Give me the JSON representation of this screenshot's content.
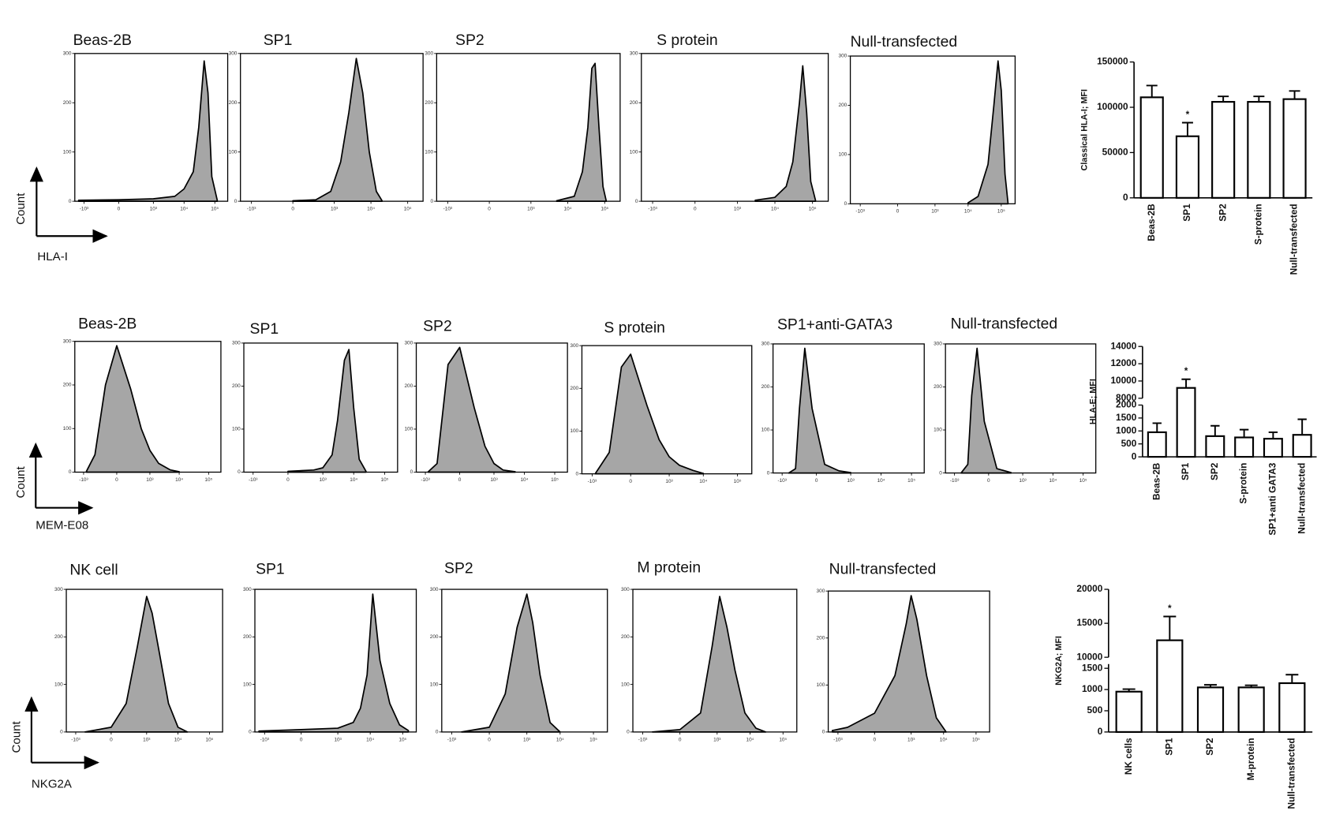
{
  "rows": [
    {
      "y_label": "Count",
      "x_label": "HLA-I"
    },
    {
      "y_label": "Count",
      "x_label": "MEM-E08"
    },
    {
      "y_label": "Count",
      "x_label": "NKG2A"
    }
  ],
  "chart_data": [
    {
      "type": "area",
      "title": "Beas-2B",
      "xscale": "asinh",
      "x": [
        -1500,
        0,
        1000,
        5000,
        10000,
        20000,
        30000,
        45000,
        60000,
        80000,
        120000
      ],
      "values": [
        2,
        3,
        5,
        10,
        25,
        60,
        150,
        285,
        220,
        50,
        2
      ],
      "xlim": [
        -2000,
        262144
      ],
      "xticks": [
        {
          "value": -1000,
          "label": "-10³"
        },
        0,
        {
          "value": 1000,
          "label": "10³"
        },
        {
          "value": 10000,
          "label": "10⁴"
        },
        {
          "value": 100000,
          "label": "10⁵"
        }
      ],
      "ylim": [
        0,
        300
      ],
      "yticks": [
        0,
        100,
        200,
        300
      ],
      "color": "#a6a6a6"
    },
    {
      "type": "area",
      "title": "SP1",
      "xscale": "asinh",
      "x": [
        0,
        300,
        800,
        1500,
        2500,
        4000,
        6000,
        9000,
        14000,
        20000
      ],
      "values": [
        1,
        3,
        20,
        80,
        180,
        290,
        220,
        100,
        20,
        1
      ],
      "xlim": [
        -2000,
        262144
      ],
      "xticks": [
        {
          "value": -1000,
          "label": "-10³"
        },
        0,
        {
          "value": 1000,
          "label": "10³"
        },
        {
          "value": 10000,
          "label": "10⁴"
        },
        {
          "value": 100000,
          "label": "10⁵"
        }
      ],
      "ylim": [
        0,
        300
      ],
      "yticks": [
        0,
        100,
        200,
        300
      ],
      "color": "#a6a6a6"
    },
    {
      "type": "area",
      "title": "SP2",
      "xscale": "asinh",
      "x": [
        5000,
        15000,
        25000,
        35000,
        45000,
        55000,
        70000,
        90000,
        110000
      ],
      "values": [
        1,
        10,
        60,
        150,
        270,
        280,
        150,
        30,
        1
      ],
      "xlim": [
        -2000,
        262144
      ],
      "xticks": [
        {
          "value": -1000,
          "label": "-10³"
        },
        0,
        {
          "value": 1000,
          "label": "10³"
        },
        {
          "value": 10000,
          "label": "10⁴"
        },
        {
          "value": 100000,
          "label": "10⁵"
        }
      ],
      "ylim": [
        0,
        300
      ],
      "yticks": [
        0,
        100,
        200,
        300
      ],
      "color": "#a6a6a6"
    },
    {
      "type": "area",
      "title": "S protein",
      "xscale": "asinh",
      "x": [
        3000,
        10000,
        20000,
        30000,
        45000,
        55000,
        70000,
        90000,
        120000
      ],
      "values": [
        2,
        8,
        30,
        80,
        200,
        275,
        180,
        40,
        2
      ],
      "xlim": [
        -2000,
        262144
      ],
      "xticks": [
        {
          "value": -1000,
          "label": "-10³"
        },
        0,
        {
          "value": 1000,
          "label": "10³"
        },
        {
          "value": 10000,
          "label": "10⁴"
        },
        {
          "value": 100000,
          "label": "10⁵"
        }
      ],
      "ylim": [
        0,
        300
      ],
      "yticks": [
        0,
        100,
        200,
        300
      ],
      "color": "#a6a6a6"
    },
    {
      "type": "area",
      "title": "Null-transfected",
      "xscale": "asinh",
      "x": [
        10000,
        20000,
        40000,
        60000,
        80000,
        100000,
        130000,
        160000
      ],
      "values": [
        2,
        15,
        80,
        200,
        290,
        230,
        60,
        2
      ],
      "xlim": [
        -2000,
        262144
      ],
      "xticks": [
        {
          "value": -1000,
          "label": "-10³"
        },
        0,
        {
          "value": 1000,
          "label": "10³"
        },
        {
          "value": 10000,
          "label": "10⁴"
        },
        {
          "value": 100000,
          "label": "10⁵"
        }
      ],
      "ylim": [
        0,
        300
      ],
      "yticks": [
        0,
        100,
        200,
        300
      ],
      "color": "#a6a6a6"
    },
    {
      "type": "bar",
      "categories": [
        "Beas-2B",
        "SP1",
        "SP2",
        "S-protein",
        "Null-transfected"
      ],
      "values": [
        111000,
        68000,
        106000,
        106000,
        109000
      ],
      "errors": [
        13000,
        15000,
        6000,
        6000,
        9000
      ],
      "ylim_segments": [
        [
          0,
          150000
        ]
      ],
      "yticks": [
        0,
        50000,
        100000,
        150000
      ],
      "y_label": "Classical HLA-I; MFI",
      "color": "#ffffff",
      "annotations": [
        {
          "text": "*",
          "x": "SP1"
        }
      ]
    },
    {
      "type": "area",
      "title": "Beas-2B",
      "xscale": "asinh",
      "x": [
        -800,
        -400,
        -150,
        0,
        200,
        500,
        1000,
        2000,
        5000,
        10000
      ],
      "values": [
        2,
        40,
        200,
        290,
        190,
        100,
        50,
        20,
        5,
        1
      ],
      "xlim": [
        -2000,
        262144
      ],
      "xticks": [
        {
          "value": -1000,
          "label": "-10³"
        },
        0,
        {
          "value": 1000,
          "label": "10³"
        },
        {
          "value": 10000,
          "label": "10⁴"
        },
        {
          "value": 100000,
          "label": "10⁵"
        }
      ],
      "ylim": [
        0,
        300
      ],
      "yticks": [
        0,
        100,
        200,
        300
      ],
      "color": "#a6a6a6"
    },
    {
      "type": "area",
      "title": "SP1",
      "xscale": "asinh",
      "x": [
        0,
        500,
        1000,
        2000,
        3000,
        5000,
        7000,
        10000,
        15000,
        25000
      ],
      "values": [
        2,
        5,
        10,
        40,
        120,
        260,
        285,
        150,
        30,
        2
      ],
      "xlim": [
        -2000,
        262144
      ],
      "xticks": [
        {
          "value": -1000,
          "label": "-10³"
        },
        0,
        {
          "value": 1000,
          "label": "10³"
        },
        {
          "value": 10000,
          "label": "10⁴"
        },
        {
          "value": 100000,
          "label": "10⁵"
        }
      ],
      "ylim": [
        0,
        300
      ],
      "yticks": [
        0,
        100,
        200,
        300
      ],
      "color": "#a6a6a6"
    },
    {
      "type": "area",
      "title": "SP2",
      "xscale": "asinh",
      "x": [
        -800,
        -400,
        -150,
        0,
        200,
        500,
        1000,
        2000,
        5000
      ],
      "values": [
        1,
        20,
        250,
        290,
        150,
        60,
        20,
        5,
        1
      ],
      "xlim": [
        -2000,
        262144
      ],
      "xticks": [
        {
          "value": -1000,
          "label": "-10³"
        },
        0,
        {
          "value": 1000,
          "label": "10³"
        },
        {
          "value": 10000,
          "label": "10⁴"
        },
        {
          "value": 100000,
          "label": "10⁵"
        }
      ],
      "ylim": [
        0,
        300
      ],
      "yticks": [
        0,
        100,
        200,
        300
      ],
      "color": "#a6a6a6"
    },
    {
      "type": "area",
      "title": "S protein",
      "xscale": "asinh",
      "x": [
        -800,
        -300,
        -100,
        0,
        200,
        500,
        1000,
        2000,
        5000,
        10000
      ],
      "values": [
        1,
        50,
        250,
        280,
        160,
        80,
        40,
        20,
        8,
        1
      ],
      "xlim": [
        -2000,
        262144
      ],
      "xticks": [
        {
          "value": -1000,
          "label": "-10³"
        },
        0,
        {
          "value": 1000,
          "label": "10³"
        },
        {
          "value": 10000,
          "label": "10⁴"
        },
        {
          "value": 100000,
          "label": "10⁵"
        }
      ],
      "ylim": [
        0,
        300
      ],
      "yticks": [
        0,
        100,
        200,
        300
      ],
      "color": "#a6a6a6"
    },
    {
      "type": "area",
      "title": "SP1+anti-GATA3",
      "xscale": "asinh",
      "x": [
        -600,
        -350,
        -250,
        -150,
        -50,
        100,
        400,
        1000
      ],
      "values": [
        0,
        10,
        150,
        290,
        150,
        20,
        5,
        1
      ],
      "xlim": [
        -2000,
        262144
      ],
      "xticks": [
        {
          "value": -1000,
          "label": "-10³"
        },
        0,
        {
          "value": 1000,
          "label": "10³"
        },
        {
          "value": 10000,
          "label": "10⁴"
        },
        {
          "value": 100000,
          "label": "10⁵"
        }
      ],
      "ylim": [
        0,
        300
      ],
      "yticks": [
        0,
        100,
        200,
        300
      ],
      "color": "#a6a6a6"
    },
    {
      "type": "area",
      "title": "Null-transfected",
      "xscale": "asinh",
      "x": [
        -600,
        -350,
        -250,
        -150,
        -50,
        100,
        400
      ],
      "values": [
        0,
        20,
        180,
        290,
        120,
        10,
        1
      ],
      "xlim": [
        -2000,
        262144
      ],
      "xticks": [
        {
          "value": -1000,
          "label": "-10³"
        },
        0,
        {
          "value": 1000,
          "label": "10³"
        },
        {
          "value": 10000,
          "label": "10⁴"
        },
        {
          "value": 100000,
          "label": "10⁵"
        }
      ],
      "ylim": [
        0,
        300
      ],
      "yticks": [
        0,
        100,
        200,
        300
      ],
      "color": "#a6a6a6"
    },
    {
      "type": "bar",
      "categories": [
        "Beas-2B",
        "SP1",
        "SP2",
        "S-protein",
        "SP1+anti GATA3",
        "Null-transfected"
      ],
      "values": [
        950,
        9200,
        800,
        750,
        700,
        850
      ],
      "errors": [
        350,
        1000,
        400,
        300,
        250,
        600
      ],
      "ylim_segments": [
        [
          0,
          2000
        ],
        [
          8000,
          14000
        ]
      ],
      "yticks": [
        0,
        500,
        1000,
        1500,
        2000,
        8000,
        10000,
        12000,
        14000
      ],
      "y_label": "HLA-E; MFI",
      "color": "#ffffff",
      "annotations": [
        {
          "text": "*",
          "x": "SP1"
        }
      ]
    },
    {
      "type": "area",
      "title": "NK cell",
      "xscale": "asinh",
      "x": [
        -500,
        0,
        200,
        500,
        1000,
        1500,
        2500,
        5000,
        10000,
        20000
      ],
      "values": [
        0,
        10,
        60,
        180,
        285,
        250,
        170,
        60,
        10,
        0
      ],
      "xlim": [
        -2000,
        262144
      ],
      "xticks": [
        {
          "value": -1000,
          "label": "-10³"
        },
        0,
        {
          "value": 1000,
          "label": "10³"
        },
        {
          "value": 10000,
          "label": "10⁴"
        },
        {
          "value": 100000,
          "label": "10⁵"
        }
      ],
      "ylim": [
        0,
        300
      ],
      "yticks": [
        0,
        100,
        200,
        300
      ],
      "color": "#a6a6a6"
    },
    {
      "type": "area",
      "title": "SP1",
      "xscale": "asinh",
      "x": [
        -1500,
        0,
        1000,
        3000,
        5000,
        8000,
        12000,
        20000,
        40000,
        80000,
        150000
      ],
      "values": [
        2,
        5,
        8,
        20,
        50,
        120,
        290,
        150,
        60,
        15,
        3
      ],
      "xlim": [
        -2000,
        262144
      ],
      "xticks": [
        {
          "value": -1000,
          "label": "-10³"
        },
        0,
        {
          "value": 1000,
          "label": "10³"
        },
        {
          "value": 10000,
          "label": "10⁴"
        },
        {
          "value": 100000,
          "label": "10⁵"
        }
      ],
      "ylim": [
        0,
        300
      ],
      "yticks": [
        0,
        100,
        200,
        300
      ],
      "color": "#a6a6a6"
    },
    {
      "type": "area",
      "title": "SP2",
      "xscale": "asinh",
      "x": [
        -500,
        0,
        200,
        500,
        1000,
        1500,
        2500,
        5000,
        10000
      ],
      "values": [
        0,
        10,
        80,
        220,
        290,
        230,
        120,
        20,
        0
      ],
      "xlim": [
        -2000,
        262144
      ],
      "xticks": [
        {
          "value": -1000,
          "label": "-10³"
        },
        0,
        {
          "value": 1000,
          "label": "10³"
        },
        {
          "value": 10000,
          "label": "10⁴"
        },
        {
          "value": 100000,
          "label": "10⁵"
        }
      ],
      "ylim": [
        0,
        300
      ],
      "yticks": [
        0,
        100,
        200,
        300
      ],
      "color": "#a6a6a6"
    },
    {
      "type": "area",
      "title": "M protein",
      "xscale": "asinh",
      "x": [
        -500,
        0,
        300,
        700,
        1200,
        2000,
        3500,
        7000,
        15000,
        30000
      ],
      "values": [
        0,
        5,
        40,
        180,
        285,
        220,
        130,
        40,
        8,
        0
      ],
      "xlim": [
        -2000,
        262144
      ],
      "xticks": [
        {
          "value": -1000,
          "label": "-10³"
        },
        0,
        {
          "value": 1000,
          "label": "10³"
        },
        {
          "value": 10000,
          "label": "10⁴"
        },
        {
          "value": 100000,
          "label": "10⁵"
        }
      ],
      "ylim": [
        0,
        300
      ],
      "yticks": [
        0,
        100,
        200,
        300
      ],
      "color": "#a6a6a6"
    },
    {
      "type": "area",
      "title": "Null-transfected",
      "xscale": "asinh",
      "x": [
        -1500,
        -500,
        0,
        300,
        700,
        1000,
        1500,
        3000,
        6000,
        12000
      ],
      "values": [
        3,
        10,
        40,
        120,
        230,
        290,
        240,
        120,
        30,
        0
      ],
      "xlim": [
        -2000,
        262144
      ],
      "xticks": [
        {
          "value": -1000,
          "label": "-10³"
        },
        0,
        {
          "value": 1000,
          "label": "10³"
        },
        {
          "value": 10000,
          "label": "10⁴"
        },
        {
          "value": 100000,
          "label": "10⁵"
        }
      ],
      "ylim": [
        0,
        300
      ],
      "yticks": [
        0,
        100,
        200,
        300
      ],
      "color": "#a6a6a6"
    },
    {
      "type": "bar",
      "categories": [
        "NK cells",
        "SP1",
        "SP2",
        "M-protein",
        "Null-transfected"
      ],
      "values": [
        950,
        12500,
        1050,
        1050,
        1150
      ],
      "errors": [
        60,
        3500,
        60,
        50,
        200
      ],
      "ylim_segments": [
        [
          0,
          1600
        ],
        [
          10000,
          20000
        ]
      ],
      "yticks": [
        0,
        500,
        1000,
        1500,
        10000,
        15000,
        20000
      ],
      "y_label": "NKG2A; MFI",
      "color": "#ffffff",
      "annotations": [
        {
          "text": "*",
          "x": "SP1"
        }
      ]
    }
  ]
}
